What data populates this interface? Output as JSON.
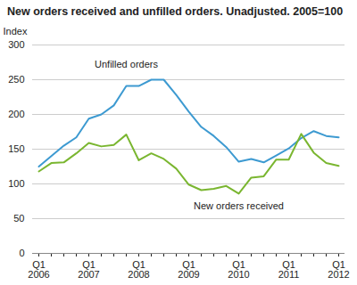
{
  "chart_data": {
    "type": "line",
    "title": "New orders received and unfilled orders. Unadjusted. 2005=100",
    "y_label": "Index",
    "categories": [
      "Q1\n2006",
      null,
      null,
      null,
      "Q1\n2007",
      null,
      null,
      null,
      "Q1\n2008",
      null,
      null,
      null,
      "Q1\n2009",
      null,
      null,
      null,
      "Q1\n2010",
      null,
      null,
      null,
      "Q1\n2011",
      null,
      null,
      null,
      "Q1\n2012"
    ],
    "series": [
      {
        "name": "Unfilled orders",
        "color": "#3d9ad1",
        "values": [
          125,
          140,
          155,
          167,
          194,
          200,
          213,
          241,
          241,
          250,
          250,
          228,
          204,
          182,
          169,
          153,
          132,
          136,
          131,
          141,
          151,
          166,
          176,
          169,
          167
        ]
      },
      {
        "name": "New orders received",
        "color": "#7ab630",
        "values": [
          118,
          130,
          131,
          144,
          159,
          154,
          156,
          171,
          134,
          144,
          136,
          122,
          99,
          91,
          93,
          97,
          86,
          109,
          111,
          135,
          135,
          172,
          145,
          130,
          126
        ]
      }
    ],
    "ylim": [
      0,
      300
    ],
    "yticks": [
      0,
      50,
      100,
      150,
      200,
      250,
      300
    ],
    "grid": true
  }
}
